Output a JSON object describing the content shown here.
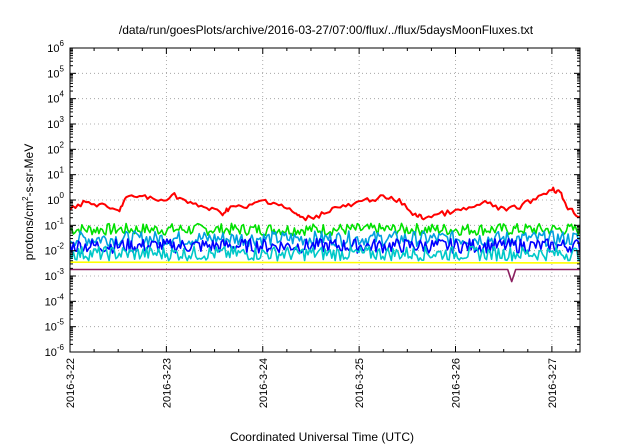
{
  "chart_data": {
    "type": "line",
    "title": "/data/run/goesPlots/archive/2016-03-27/07:00/flux/../flux/5daysMoonFluxes.txt",
    "xlabel": "Coordinated Universal Time (UTC)",
    "ylabel": {
      "prefix": "protons/cm",
      "sup": "2",
      "suffix": "-s-sr-MeV"
    },
    "y_scale": "log",
    "ylim": [
      1e-06,
      1000000.0
    ],
    "xlim": [
      "2016-03-22 00:00",
      "2016-03-27 07:00"
    ],
    "x_ticks": [
      "2016-3-22",
      "2016-3-23",
      "2016-3-24",
      "2016-3-25",
      "2016-3-26",
      "2016-3-27"
    ],
    "y_ticks": [
      {
        "value": 1e-06,
        "base": "10",
        "exp": "-6"
      },
      {
        "value": 1e-05,
        "base": "10",
        "exp": "-5"
      },
      {
        "value": 0.0001,
        "base": "10",
        "exp": "-4"
      },
      {
        "value": 0.001,
        "base": "10",
        "exp": "-3"
      },
      {
        "value": 0.01,
        "base": "10",
        "exp": "-2"
      },
      {
        "value": 0.1,
        "base": "10",
        "exp": "-1"
      },
      {
        "value": 1,
        "base": "10",
        "exp": "0"
      },
      {
        "value": 10,
        "base": "10",
        "exp": "1"
      },
      {
        "value": 100,
        "base": "10",
        "exp": "2"
      },
      {
        "value": 1000,
        "base": "10",
        "exp": "3"
      },
      {
        "value": 10000,
        "base": "10",
        "exp": "4"
      },
      {
        "value": 100000,
        "base": "10",
        "exp": "5"
      },
      {
        "value": 1000000,
        "base": "10",
        "exp": "6"
      }
    ],
    "grid": true,
    "series": [
      {
        "color": "#ff0000",
        "values": [
          [
            "2016-03-22 00:00",
            0.5
          ],
          [
            "2016-03-22 04:00",
            0.8
          ],
          [
            "2016-03-22 08:00",
            0.6
          ],
          [
            "2016-03-22 12:00",
            0.35
          ],
          [
            "2016-03-22 14:00",
            1.2
          ],
          [
            "2016-03-22 18:00",
            1.5
          ],
          [
            "2016-03-22 22:00",
            0.9
          ],
          [
            "2016-03-23 02:00",
            1.6
          ],
          [
            "2016-03-23 06:00",
            0.7
          ],
          [
            "2016-03-23 10:00",
            0.5
          ],
          [
            "2016-03-23 14:00",
            0.3
          ],
          [
            "2016-03-23 16:00",
            0.55
          ],
          [
            "2016-03-23 20:00",
            0.5
          ],
          [
            "2016-03-24 00:00",
            1.0
          ],
          [
            "2016-03-24 04:00",
            0.7
          ],
          [
            "2016-03-24 08:00",
            0.3
          ],
          [
            "2016-03-24 10:00",
            0.18
          ],
          [
            "2016-03-24 14:00",
            0.25
          ],
          [
            "2016-03-24 18:00",
            0.5
          ],
          [
            "2016-03-24 22:00",
            0.6
          ],
          [
            "2016-03-25 02:00",
            1.0
          ],
          [
            "2016-03-25 06:00",
            1.3
          ],
          [
            "2016-03-25 10:00",
            0.9
          ],
          [
            "2016-03-25 14:00",
            0.25
          ],
          [
            "2016-03-25 16:00",
            0.2
          ],
          [
            "2016-03-25 20:00",
            0.28
          ],
          [
            "2016-03-26 00:00",
            0.35
          ],
          [
            "2016-03-26 04:00",
            0.5
          ],
          [
            "2016-03-26 08:00",
            0.8
          ],
          [
            "2016-03-26 12:00",
            0.4
          ],
          [
            "2016-03-26 16:00",
            0.55
          ],
          [
            "2016-03-26 20:00",
            1.2
          ],
          [
            "2016-03-27 00:00",
            2.8
          ],
          [
            "2016-03-27 02:00",
            2.0
          ],
          [
            "2016-03-27 04:00",
            0.5
          ],
          [
            "2016-03-27 07:00",
            0.22
          ]
        ]
      },
      {
        "color": "#00e000",
        "band": [
          0.04,
          0.12
        ]
      },
      {
        "color": "#00a0e0",
        "band": [
          0.015,
          0.06
        ]
      },
      {
        "color": "#0000ff",
        "band": [
          0.008,
          0.03
        ]
      },
      {
        "color": "#00c8c8",
        "band": [
          0.004,
          0.015
        ]
      },
      {
        "color": "#ffff00",
        "values": [
          [
            "2016-03-22 00:00",
            0.0035
          ],
          [
            "2016-03-27 07:00",
            0.0033
          ]
        ]
      },
      {
        "color": "#8b2060",
        "values": [
          [
            "2016-03-22 00:00",
            0.0018
          ],
          [
            "2016-03-26 13:00",
            0.0018
          ],
          [
            "2016-03-26 14:00",
            0.0006
          ],
          [
            "2016-03-26 15:00",
            0.0018
          ],
          [
            "2016-03-27 07:00",
            0.0018
          ]
        ]
      }
    ]
  }
}
